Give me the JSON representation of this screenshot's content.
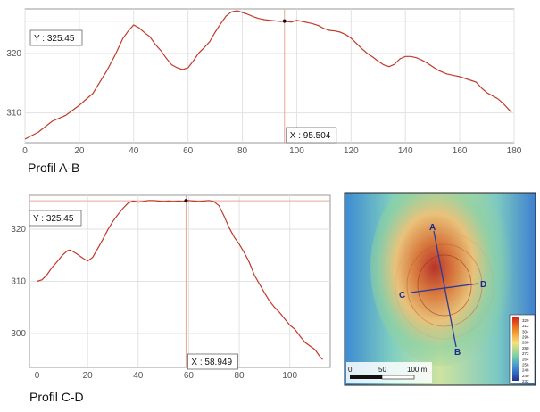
{
  "captions": {
    "top": "Profil A-B",
    "bottom": "Profil C-D"
  },
  "chart_data": [
    {
      "type": "line",
      "title": "Profil A-B",
      "xlim": [
        0,
        180
      ],
      "ylim": [
        305,
        327.5
      ],
      "x_ticks": [
        0,
        20,
        40,
        60,
        80,
        100,
        120,
        140,
        160,
        180
      ],
      "y_ticks": [
        310,
        320
      ],
      "grid": true,
      "cursor": {
        "x": 95.504,
        "y": 325.45,
        "x_label": "X : 95.504",
        "y_label": "Y : 325.45"
      },
      "series": [
        {
          "color": "#c0392b",
          "x": [
            0,
            5,
            10,
            15,
            20,
            25,
            30,
            33,
            36,
            38,
            40,
            42,
            44,
            46,
            48,
            50,
            52,
            54,
            56,
            58,
            60,
            62,
            64,
            66,
            68,
            70,
            72,
            74,
            76,
            78,
            80,
            82,
            84,
            86,
            88,
            90,
            92,
            94,
            95.5,
            98,
            100,
            102,
            104,
            106,
            108,
            110,
            112,
            114,
            116,
            118,
            120,
            122,
            124,
            126,
            128,
            130,
            132,
            134,
            136,
            138,
            140,
            142,
            144,
            146,
            148,
            150,
            152,
            155,
            158,
            160,
            162,
            164,
            166,
            168,
            170,
            172,
            174,
            176,
            178,
            179
          ],
          "y": [
            305.6,
            306.8,
            308.6,
            309.6,
            311.3,
            313.3,
            317.0,
            319.6,
            322.5,
            323.8,
            324.8,
            324.3,
            323.5,
            322.8,
            321.5,
            320.5,
            319.2,
            318.1,
            317.6,
            317.3,
            317.6,
            318.8,
            320.1,
            321.0,
            322.0,
            323.6,
            325.0,
            326.3,
            327.0,
            327.2,
            326.9,
            326.6,
            326.2,
            325.9,
            325.7,
            325.6,
            325.5,
            325.4,
            325.45,
            325.3,
            325.6,
            325.4,
            325.2,
            325.0,
            324.7,
            324.2,
            323.9,
            323.8,
            323.6,
            323.2,
            322.6,
            321.7,
            320.8,
            320.0,
            319.4,
            318.7,
            318.1,
            317.8,
            318.2,
            319.1,
            319.5,
            319.5,
            319.3,
            318.9,
            318.4,
            317.8,
            317.2,
            316.6,
            316.3,
            316.1,
            315.8,
            315.5,
            315.2,
            314.2,
            313.4,
            312.9,
            312.4,
            311.6,
            310.6,
            310.1
          ]
        }
      ]
    },
    {
      "type": "line",
      "title": "Profil C-D",
      "xlim": [
        -3,
        116
      ],
      "ylim": [
        293.5,
        326.5
      ],
      "x_ticks": [
        0,
        20,
        40,
        60,
        80,
        100
      ],
      "y_ticks": [
        300,
        310,
        320
      ],
      "grid": true,
      "cursor": {
        "x": 58.949,
        "y": 325.45,
        "x_label": "X : 58.949",
        "y_label": "Y : 325.45"
      },
      "series": [
        {
          "color": "#c0392b",
          "x": [
            0,
            2,
            4,
            6,
            8,
            10,
            12,
            13,
            14,
            16,
            18,
            20,
            22,
            24,
            26,
            28,
            30,
            32,
            34,
            36,
            38,
            40,
            42,
            44,
            46,
            48,
            50,
            52,
            54,
            56,
            58,
            58.949,
            60,
            62,
            64,
            66,
            68,
            70,
            72,
            74,
            76,
            78,
            80,
            82,
            84,
            86,
            88,
            90,
            92,
            94,
            96,
            98,
            100,
            102,
            104,
            106,
            108,
            110,
            112,
            113
          ],
          "y": [
            310.0,
            310.3,
            311.3,
            312.7,
            313.8,
            315.0,
            315.9,
            316.0,
            315.8,
            315.2,
            314.5,
            313.9,
            314.6,
            316.3,
            318.0,
            319.9,
            321.5,
            322.8,
            324.0,
            325.0,
            325.4,
            325.2,
            325.3,
            325.5,
            325.5,
            325.4,
            325.3,
            325.4,
            325.3,
            325.4,
            325.3,
            325.45,
            325.5,
            325.4,
            325.3,
            325.4,
            325.5,
            325.3,
            324.5,
            322.5,
            320.3,
            318.5,
            317.1,
            315.5,
            313.6,
            311.2,
            309.5,
            307.8,
            306.2,
            305.0,
            304.0,
            302.8,
            301.6,
            300.8,
            299.5,
            298.3,
            297.6,
            296.9,
            295.5,
            295.0
          ]
        }
      ]
    }
  ],
  "map": {
    "labels": {
      "a": "A",
      "b": "B",
      "c": "C",
      "d": "D"
    },
    "scale": {
      "zero": "0",
      "mid": "50",
      "end": "100 m"
    },
    "legend_values": [
      "329",
      "312",
      "304",
      "296",
      "288",
      "280",
      "272",
      "264",
      "256",
      "248",
      "240",
      "232"
    ],
    "colors": {
      "high": "#d2261c",
      "low": "#1f3fb0",
      "line": "#2b3a9a"
    }
  }
}
